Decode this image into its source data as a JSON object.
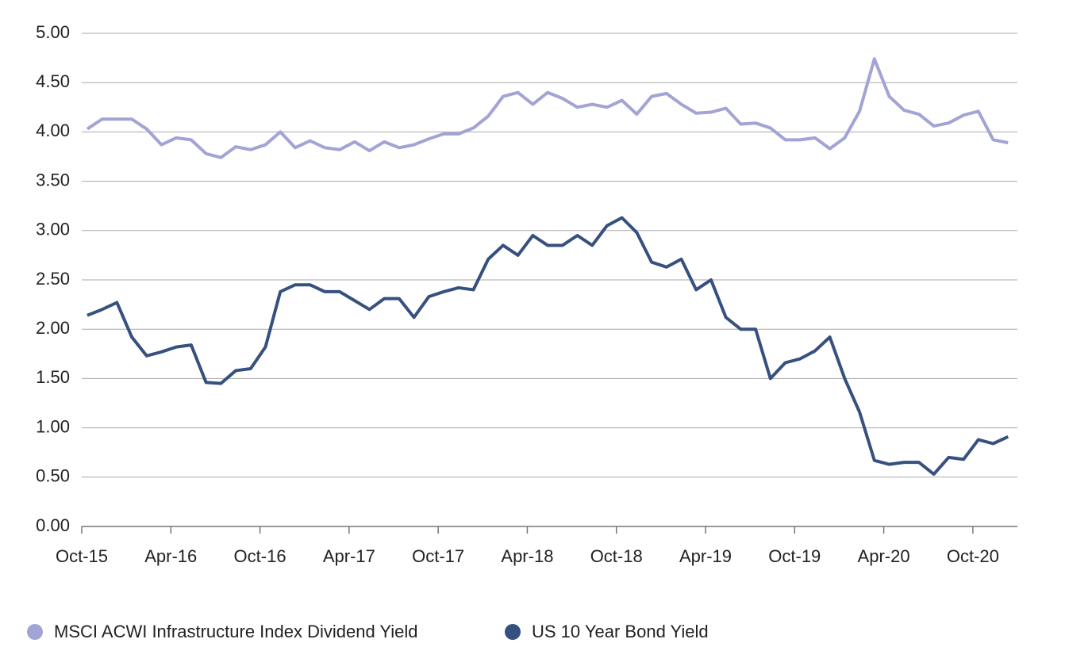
{
  "chart_data": {
    "type": "line",
    "categories": [
      "Oct-15",
      null,
      null,
      null,
      null,
      null,
      "Apr-16",
      null,
      null,
      null,
      null,
      null,
      "Oct-16",
      null,
      null,
      null,
      null,
      null,
      "Apr-17",
      null,
      null,
      null,
      null,
      null,
      "Oct-17",
      null,
      null,
      null,
      null,
      null,
      "Apr-18",
      null,
      null,
      null,
      null,
      null,
      "Oct-18",
      null,
      null,
      null,
      null,
      null,
      "Apr-19",
      null,
      null,
      null,
      null,
      null,
      "Oct-19",
      null,
      null,
      null,
      null,
      null,
      "Apr-20",
      null,
      null,
      null,
      null,
      null,
      "Oct-20",
      null,
      null
    ],
    "series": [
      {
        "name": "MSCI ACWI Infrastructure Index Dividend Yield",
        "color": "#a1a4d4",
        "values": [
          4.03,
          4.13,
          4.13,
          4.13,
          4.03,
          3.87,
          3.94,
          3.92,
          3.78,
          3.74,
          3.85,
          3.82,
          3.87,
          4.0,
          3.84,
          3.91,
          3.84,
          3.82,
          3.9,
          3.81,
          3.9,
          3.84,
          3.87,
          3.93,
          3.98,
          3.98,
          4.04,
          4.16,
          4.36,
          4.4,
          4.28,
          4.4,
          4.34,
          4.25,
          4.28,
          4.25,
          4.32,
          4.18,
          4.36,
          4.39,
          4.28,
          4.19,
          4.2,
          4.24,
          4.08,
          4.09,
          4.04,
          3.92,
          3.92,
          3.94,
          3.83,
          3.94,
          4.21,
          4.74,
          4.36,
          4.22,
          4.18,
          4.06,
          4.09,
          4.17,
          4.21,
          3.92,
          3.89
        ]
      },
      {
        "name": "US 10 Year Bond Yield",
        "color": "#36507f",
        "values": [
          2.14,
          2.2,
          2.27,
          1.92,
          1.73,
          1.77,
          1.82,
          1.84,
          1.46,
          1.45,
          1.58,
          1.6,
          1.82,
          2.38,
          2.45,
          2.45,
          2.38,
          2.38,
          2.29,
          2.2,
          2.31,
          2.31,
          2.12,
          2.33,
          2.38,
          2.42,
          2.4,
          2.71,
          2.85,
          2.75,
          2.95,
          2.85,
          2.85,
          2.95,
          2.85,
          3.05,
          3.13,
          2.98,
          2.68,
          2.63,
          2.71,
          2.4,
          2.5,
          2.12,
          2.0,
          2.0,
          1.5,
          1.66,
          1.7,
          1.78,
          1.92,
          1.5,
          1.16,
          0.67,
          0.63,
          0.65,
          0.65,
          0.53,
          0.7,
          0.68,
          0.88,
          0.84,
          0.91
        ]
      }
    ],
    "ylim": [
      0,
      5
    ],
    "yticks": [
      {
        "value": 0,
        "label": "0.00"
      },
      {
        "value": 0.5,
        "label": "0.50"
      },
      {
        "value": 1,
        "label": "1.00"
      },
      {
        "value": 1.5,
        "label": "1.50"
      },
      {
        "value": 2,
        "label": "2.00"
      },
      {
        "value": 2.5,
        "label": "2.50"
      },
      {
        "value": 3,
        "label": "3.00"
      },
      {
        "value": 3.5,
        "label": "3.50"
      },
      {
        "value": 4,
        "label": "4.00"
      },
      {
        "value": 4.5,
        "label": "4.50"
      },
      {
        "value": 5,
        "label": "5.00"
      }
    ],
    "grid": true,
    "legend": "bottom"
  }
}
